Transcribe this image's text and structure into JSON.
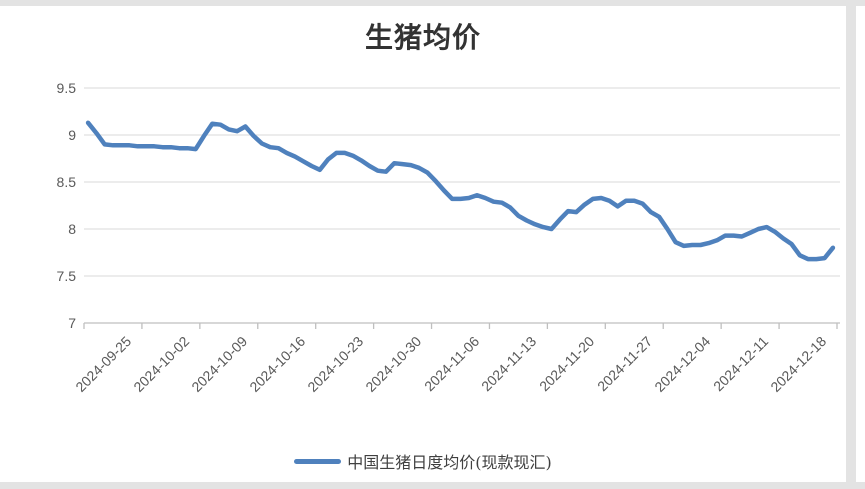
{
  "title": "生猪均价",
  "legend": {
    "series_label": "中国生猪日度均价(现款现汇)"
  },
  "colors": {
    "line": "#4f81bd",
    "gridline": "#d9d9d9",
    "axis": "#bfbfbf",
    "tick": "#bfbfbf",
    "axis_label_text": "#595959",
    "title_text": "#333333",
    "frame_strip": "#e3e3e3",
    "background": "#ffffff"
  },
  "chart_data": {
    "type": "line",
    "title": "生猪均价",
    "xlabel": "",
    "ylabel": "",
    "ylim": [
      7,
      9.5
    ],
    "y_ticks": [
      9.5,
      9,
      8.5,
      8,
      7.5,
      7
    ],
    "grid": true,
    "legend_position": "bottom",
    "x_tick_labels": [
      "2024-09-25",
      "2024-10-02",
      "2024-10-09",
      "2024-10-16",
      "2024-10-23",
      "2024-10-30",
      "2024-11-06",
      "2024-11-13",
      "2024-11-20",
      "2024-11-27",
      "2024-12-04",
      "2024-12-11",
      "2024-12-18"
    ],
    "series": [
      {
        "name": "中国生猪日度均价(现款现汇)",
        "color": "#4f81bd",
        "dates": [
          "2024-09-25",
          "2024-09-26",
          "2024-09-27",
          "2024-09-28",
          "2024-09-29",
          "2024-09-30",
          "2024-10-01",
          "2024-10-02",
          "2024-10-03",
          "2024-10-04",
          "2024-10-05",
          "2024-10-06",
          "2024-10-07",
          "2024-10-08",
          "2024-10-09",
          "2024-10-10",
          "2024-10-11",
          "2024-10-12",
          "2024-10-13",
          "2024-10-14",
          "2024-10-15",
          "2024-10-16",
          "2024-10-17",
          "2024-10-18",
          "2024-10-19",
          "2024-10-20",
          "2024-10-21",
          "2024-10-22",
          "2024-10-23",
          "2024-10-24",
          "2024-10-25",
          "2024-10-26",
          "2024-10-27",
          "2024-10-28",
          "2024-10-29",
          "2024-10-30",
          "2024-10-31",
          "2024-11-01",
          "2024-11-02",
          "2024-11-03",
          "2024-11-04",
          "2024-11-05",
          "2024-11-06",
          "2024-11-07",
          "2024-11-08",
          "2024-11-09",
          "2024-11-10",
          "2024-11-11",
          "2024-11-12",
          "2024-11-13",
          "2024-11-14",
          "2024-11-15",
          "2024-11-16",
          "2024-11-17",
          "2024-11-18",
          "2024-11-19",
          "2024-11-20",
          "2024-11-21",
          "2024-11-22",
          "2024-11-23",
          "2024-11-24",
          "2024-11-25",
          "2024-11-26",
          "2024-11-27",
          "2024-11-28",
          "2024-11-29",
          "2024-11-30",
          "2024-12-01",
          "2024-12-02",
          "2024-12-03",
          "2024-12-04",
          "2024-12-05",
          "2024-12-06",
          "2024-12-07",
          "2024-12-08",
          "2024-12-09",
          "2024-12-10",
          "2024-12-11",
          "2024-12-12",
          "2024-12-13",
          "2024-12-14",
          "2024-12-15",
          "2024-12-16",
          "2024-12-17",
          "2024-12-18",
          "2024-12-19",
          "2024-12-20",
          "2024-12-21",
          "2024-12-22",
          "2024-12-23",
          "2024-12-24"
        ],
        "values": [
          9.13,
          9.02,
          8.9,
          8.89,
          8.89,
          8.89,
          8.88,
          8.88,
          8.88,
          8.87,
          8.87,
          8.86,
          8.86,
          8.85,
          8.99,
          9.12,
          9.11,
          9.06,
          9.04,
          9.09,
          8.99,
          8.91,
          8.87,
          8.86,
          8.81,
          8.77,
          8.72,
          8.67,
          8.63,
          8.74,
          8.81,
          8.81,
          8.78,
          8.73,
          8.67,
          8.62,
          8.61,
          8.7,
          8.69,
          8.68,
          8.65,
          8.6,
          8.51,
          8.41,
          8.32,
          8.32,
          8.33,
          8.36,
          8.33,
          8.29,
          8.28,
          8.23,
          8.14,
          8.09,
          8.05,
          8.02,
          8.0,
          8.1,
          8.19,
          8.18,
          8.26,
          8.32,
          8.33,
          8.3,
          8.24,
          8.3,
          8.3,
          8.27,
          8.18,
          8.13,
          8.0,
          7.86,
          7.82,
          7.83,
          7.83,
          7.85,
          7.88,
          7.93,
          7.93,
          7.92,
          7.96,
          8.0,
          8.02,
          7.97,
          7.9,
          7.84,
          7.72,
          7.68,
          7.68,
          7.69,
          7.8
        ]
      }
    ]
  }
}
